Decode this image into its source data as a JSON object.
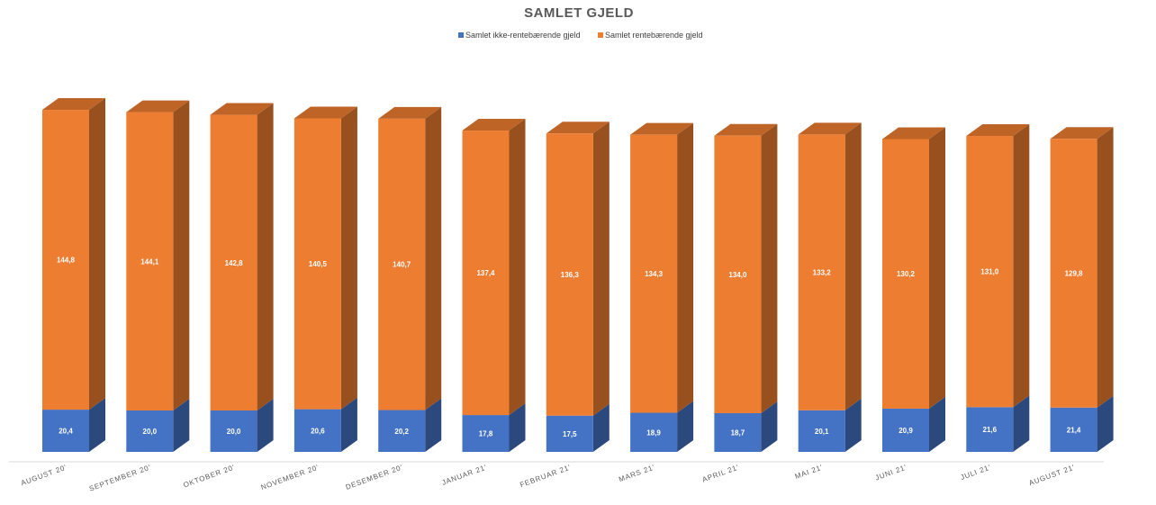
{
  "chart_data": {
    "type": "bar",
    "stacked": true,
    "style": "3d-column",
    "title": "SAMLET GJELD",
    "xlabel": "",
    "ylabel": "",
    "ylim": [
      0,
      170
    ],
    "grid": false,
    "legend_position": "top-center",
    "categories": [
      "AUGUST 20'",
      "SEPTEMBER 20'",
      "OKTOBER 20'",
      "NOVEMBER 20'",
      "DESEMBER 20'",
      "JANUAR 21'",
      "FEBRUAR 21'",
      "MARS 21'",
      "APRIL 21'",
      "MAI 21'",
      "JUNI 21'",
      "JULI 21'",
      "AUGUST 21'"
    ],
    "series": [
      {
        "name": "Samlet ikke-rentebærende gjeld",
        "color": "#4472C4",
        "values": [
          20.4,
          20.0,
          20.0,
          20.6,
          20.2,
          17.8,
          17.5,
          18.9,
          18.7,
          20.1,
          20.9,
          21.6,
          21.4
        ],
        "labels": [
          "20,4",
          "20,0",
          "20,0",
          "20,6",
          "20,2",
          "17,8",
          "17,5",
          "18,9",
          "18,7",
          "20,1",
          "20,9",
          "21,6",
          "21,4"
        ]
      },
      {
        "name": "Samlet rentebærende gjeld",
        "color": "#ED7D31",
        "values": [
          144.8,
          144.1,
          142.8,
          140.5,
          140.7,
          137.4,
          136.3,
          134.3,
          134.0,
          133.2,
          130.2,
          131.0,
          129.8
        ],
        "labels": [
          "144,8",
          "144,1",
          "142,8",
          "140,5",
          "140,7",
          "137,4",
          "136,3",
          "134,3",
          "134,0",
          "133,2",
          "130,2",
          "131,0",
          "129,8"
        ]
      }
    ]
  }
}
